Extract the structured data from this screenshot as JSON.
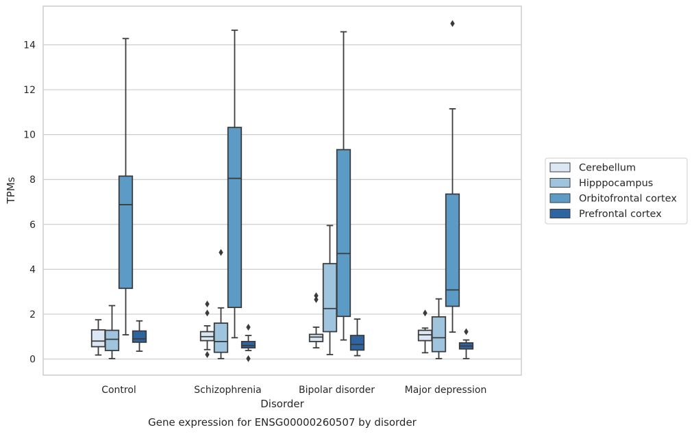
{
  "chart_data": {
    "type": "box",
    "title": "Gene expression for ENSG00000260507 by disorder",
    "xlabel": "Disorder",
    "ylabel": "TPMs",
    "ylim": [
      -0.7,
      15.5
    ],
    "yticks": [
      0,
      2,
      4,
      6,
      8,
      10,
      12,
      14
    ],
    "grid": "horizontal",
    "legend_position": "right",
    "categories": [
      "Control",
      "Schizophrenia",
      "Bipolar disorder",
      "Major depression"
    ],
    "series": [
      {
        "name": "Cerebellum",
        "color": "#dbe7f3",
        "boxes": [
          {
            "whislo": 0.18,
            "q1": 0.55,
            "med": 0.8,
            "q3": 1.3,
            "whishi": 1.75,
            "fliers": []
          },
          {
            "whislo": 0.42,
            "q1": 0.82,
            "med": 1.0,
            "q3": 1.22,
            "whishi": 1.48,
            "fliers": [
              0.2,
              2.05,
              2.45
            ]
          },
          {
            "whislo": 0.5,
            "q1": 0.78,
            "med": 0.98,
            "q3": 1.1,
            "whishi": 1.42,
            "fliers": [
              2.65,
              2.82
            ]
          },
          {
            "whislo": 0.28,
            "q1": 0.82,
            "med": 1.08,
            "q3": 1.28,
            "whishi": 1.38,
            "fliers": [
              2.05
            ]
          }
        ]
      },
      {
        "name": "Hipppocampus",
        "color": "#9fc4de",
        "boxes": [
          {
            "whislo": 0.02,
            "q1": 0.38,
            "med": 0.88,
            "q3": 1.28,
            "whishi": 2.38,
            "fliers": []
          },
          {
            "whislo": 0.02,
            "q1": 0.3,
            "med": 0.78,
            "q3": 1.6,
            "whishi": 2.28,
            "fliers": [
              4.75
            ]
          },
          {
            "whislo": 0.2,
            "q1": 1.22,
            "med": 2.25,
            "q3": 4.25,
            "whishi": 5.95,
            "fliers": []
          },
          {
            "whislo": 0.02,
            "q1": 0.33,
            "med": 0.95,
            "q3": 1.88,
            "whishi": 2.68,
            "fliers": []
          }
        ]
      },
      {
        "name": "Orbitofrontal cortex",
        "color": "#5b9bc5",
        "boxes": [
          {
            "whislo": 1.08,
            "q1": 3.15,
            "med": 6.88,
            "q3": 8.15,
            "whishi": 14.28,
            "fliers": []
          },
          {
            "whislo": 0.95,
            "q1": 2.3,
            "med": 8.05,
            "q3": 10.32,
            "whishi": 14.65,
            "fliers": []
          },
          {
            "whislo": 0.85,
            "q1": 1.9,
            "med": 4.7,
            "q3": 9.33,
            "whishi": 14.58,
            "fliers": []
          },
          {
            "whislo": 1.2,
            "q1": 2.35,
            "med": 3.08,
            "q3": 7.35,
            "whishi": 11.15,
            "fliers": [
              14.95
            ]
          }
        ]
      },
      {
        "name": "Prefrontal cortex",
        "color": "#2e64a0",
        "boxes": [
          {
            "whislo": 0.35,
            "q1": 0.75,
            "med": 0.9,
            "q3": 1.25,
            "whishi": 1.7,
            "fliers": []
          },
          {
            "whislo": 0.38,
            "q1": 0.5,
            "med": 0.6,
            "q3": 0.78,
            "whishi": 1.05,
            "fliers": [
              0.02,
              1.42
            ]
          },
          {
            "whislo": 0.15,
            "q1": 0.4,
            "med": 0.65,
            "q3": 1.05,
            "whishi": 1.78,
            "fliers": []
          },
          {
            "whislo": 0.02,
            "q1": 0.45,
            "med": 0.58,
            "q3": 0.72,
            "whishi": 0.85,
            "fliers": [
              1.22
            ]
          }
        ]
      }
    ]
  }
}
